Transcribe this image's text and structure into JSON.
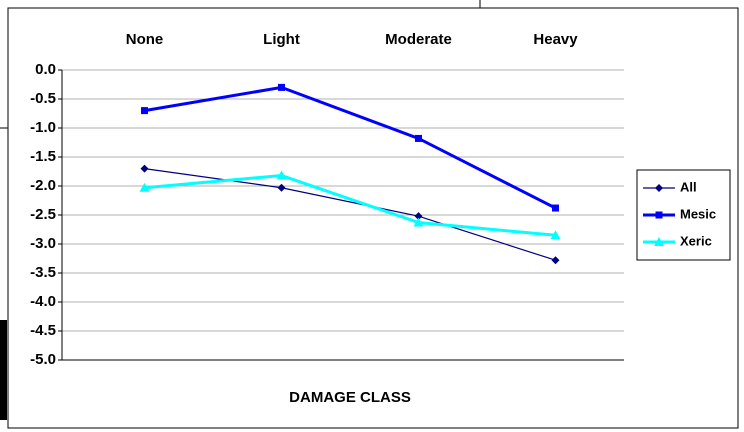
{
  "chart_data": {
    "type": "line",
    "x_label": "DAMAGE CLASS",
    "categories": [
      "None",
      "Light",
      "Moderate",
      "Heavy"
    ],
    "series": [
      {
        "name": "All",
        "color": "#000080",
        "marker": "diamond",
        "width": 1.2,
        "values": [
          -1.7,
          -2.03,
          -2.52,
          -3.28
        ]
      },
      {
        "name": "Mesic",
        "color": "#0000ff",
        "marker": "square",
        "width": 3,
        "values": [
          -0.7,
          -0.3,
          -1.18,
          -2.38
        ]
      },
      {
        "name": "Xeric",
        "color": "#00ffff",
        "marker": "triangle",
        "width": 3,
        "values": [
          -2.03,
          -1.82,
          -2.63,
          -2.85
        ]
      }
    ],
    "ylim": [
      -5,
      0
    ],
    "yticks": [
      {
        "value": 0,
        "label": "0.0"
      },
      -0.5,
      {
        "value": -1,
        "label": "-1.0"
      },
      -1.5,
      {
        "value": -2,
        "label": "-2.0"
      },
      -2.5,
      {
        "value": -3,
        "label": "-3.0"
      },
      -3.5,
      {
        "value": -4,
        "label": "-4.0"
      },
      -4.5,
      {
        "value": -5,
        "label": "-5.0"
      }
    ],
    "grid": true,
    "legend": "right"
  }
}
